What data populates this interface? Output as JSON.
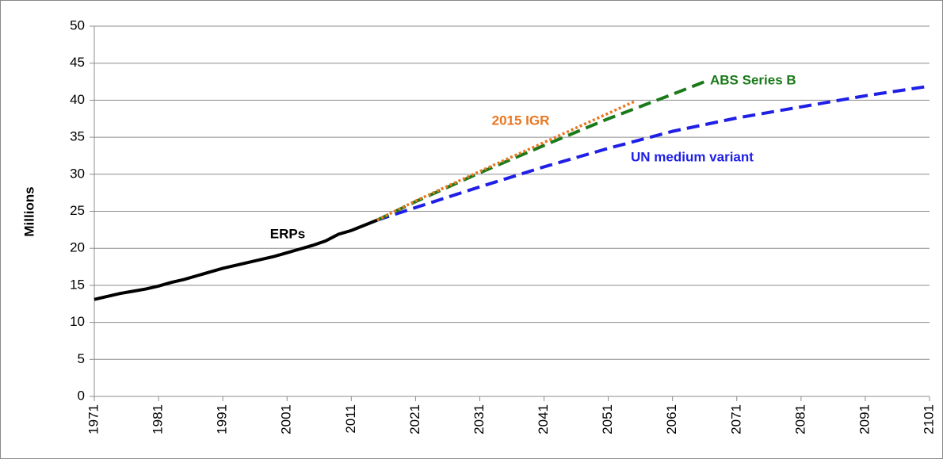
{
  "chart_data": {
    "type": "line",
    "y_label": "Millions",
    "xlim": [
      1971,
      2101
    ],
    "xticks": [
      1971,
      1981,
      1991,
      2001,
      2011,
      2021,
      2031,
      2041,
      2051,
      2061,
      2071,
      2081,
      2091,
      2101
    ],
    "ylim": [
      0,
      50
    ],
    "yticks": [
      0,
      5,
      10,
      15,
      20,
      25,
      30,
      35,
      40,
      45,
      50
    ],
    "grid": true,
    "series": [
      {
        "name": "ERPs",
        "color": "#000000",
        "dash": "solid",
        "x": [
          1971,
          1973,
          1975,
          1977,
          1979,
          1981,
          1983,
          1985,
          1987,
          1989,
          1991,
          1993,
          1995,
          1997,
          1999,
          2001,
          2003,
          2005,
          2007,
          2009,
          2011,
          2013,
          2015
        ],
        "values": [
          13.1,
          13.5,
          13.9,
          14.2,
          14.5,
          14.9,
          15.4,
          15.8,
          16.3,
          16.8,
          17.3,
          17.7,
          18.1,
          18.5,
          18.9,
          19.4,
          19.9,
          20.4,
          21.0,
          21.9,
          22.4,
          23.1,
          23.8
        ]
      },
      {
        "name": "UN medium variant",
        "color": "#1f1fe6",
        "dash": "dashed",
        "x": [
          2015,
          2021,
          2031,
          2041,
          2051,
          2061,
          2071,
          2081,
          2091,
          2101
        ],
        "values": [
          23.8,
          25.5,
          28.3,
          31.0,
          33.5,
          35.8,
          37.6,
          39.1,
          40.6,
          41.9
        ]
      },
      {
        "name": "ABS Series B",
        "color": "#1a7a1a",
        "dash": "dashed",
        "x": [
          2015,
          2021,
          2031,
          2041,
          2051,
          2061,
          2066
        ],
        "values": [
          23.8,
          26.3,
          30.2,
          33.9,
          37.5,
          40.8,
          42.5
        ]
      },
      {
        "name": "2015 IGR",
        "color": "#e87722",
        "dash": "dotted",
        "x": [
          2015,
          2021,
          2031,
          2041,
          2055
        ],
        "values": [
          23.8,
          26.4,
          30.4,
          34.3,
          39.8
        ]
      }
    ]
  }
}
